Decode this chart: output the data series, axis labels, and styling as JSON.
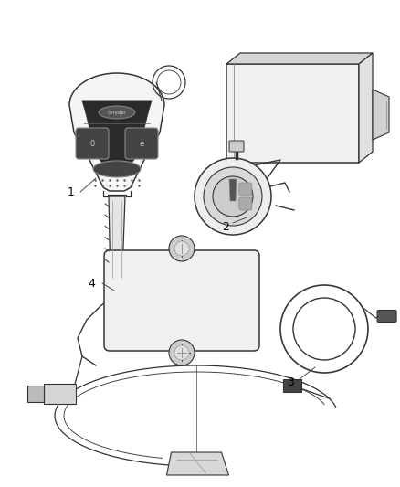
{
  "background_color": "#ffffff",
  "line_color": "#333333",
  "label_color": "#000000",
  "fig_width": 4.38,
  "fig_height": 5.33,
  "dpi": 100,
  "font_size": 9,
  "line_width": 0.9
}
